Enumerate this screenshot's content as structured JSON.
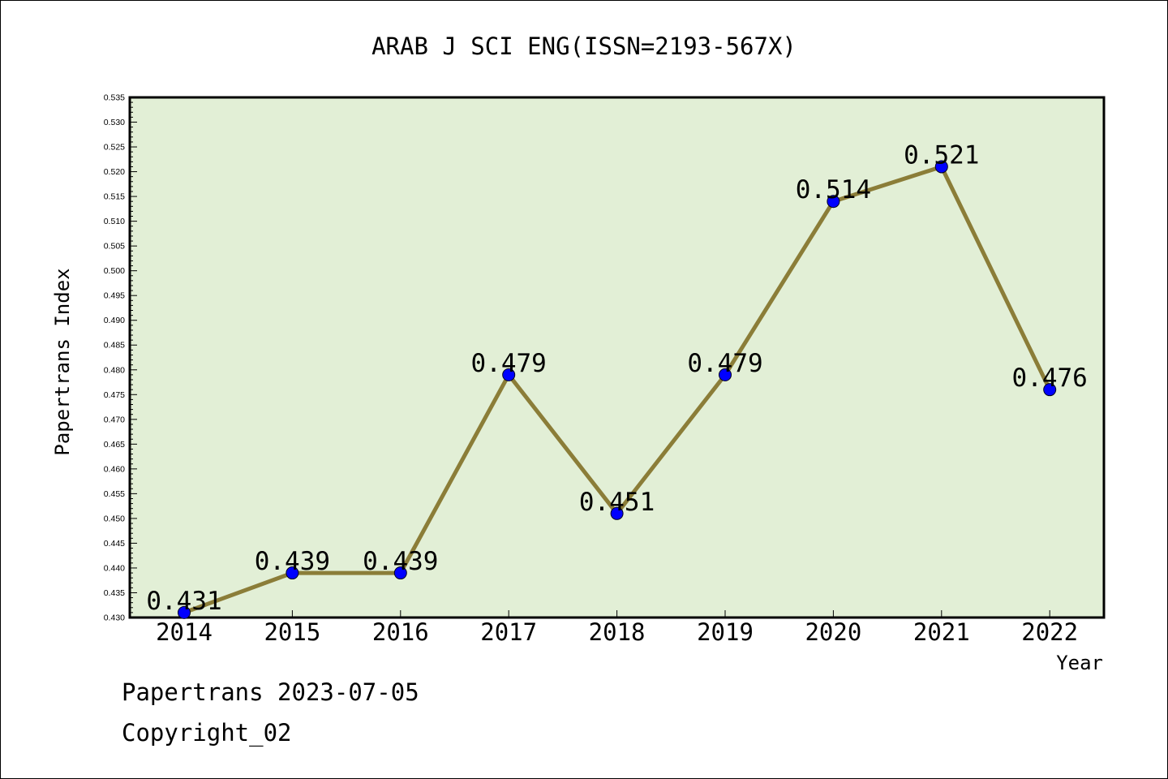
{
  "chart_data": {
    "type": "line",
    "title": "ARAB J SCI ENG(ISSN=2193-567X)",
    "xlabel": "Year",
    "ylabel": "Papertrans Index",
    "categories": [
      "2014",
      "2015",
      "2016",
      "2017",
      "2018",
      "2019",
      "2020",
      "2021",
      "2022"
    ],
    "values": [
      0.431,
      0.439,
      0.439,
      0.479,
      0.451,
      0.479,
      0.514,
      0.521,
      0.476
    ],
    "data_labels": [
      "0.431",
      "0.439",
      "0.439",
      "0.479",
      "0.451",
      "0.479",
      "0.514",
      "0.521",
      "0.476"
    ],
    "ylim": [
      0.43,
      0.535
    ],
    "ytick_step": 0.005,
    "grid": false,
    "legend": "none",
    "colors": {
      "plot_background": "#e2efd6",
      "line": "#8b7d38",
      "marker": "#0000ff"
    }
  },
  "footer": {
    "date_line": "Papertrans 2023-07-05",
    "copyright": "Copyright_02"
  }
}
